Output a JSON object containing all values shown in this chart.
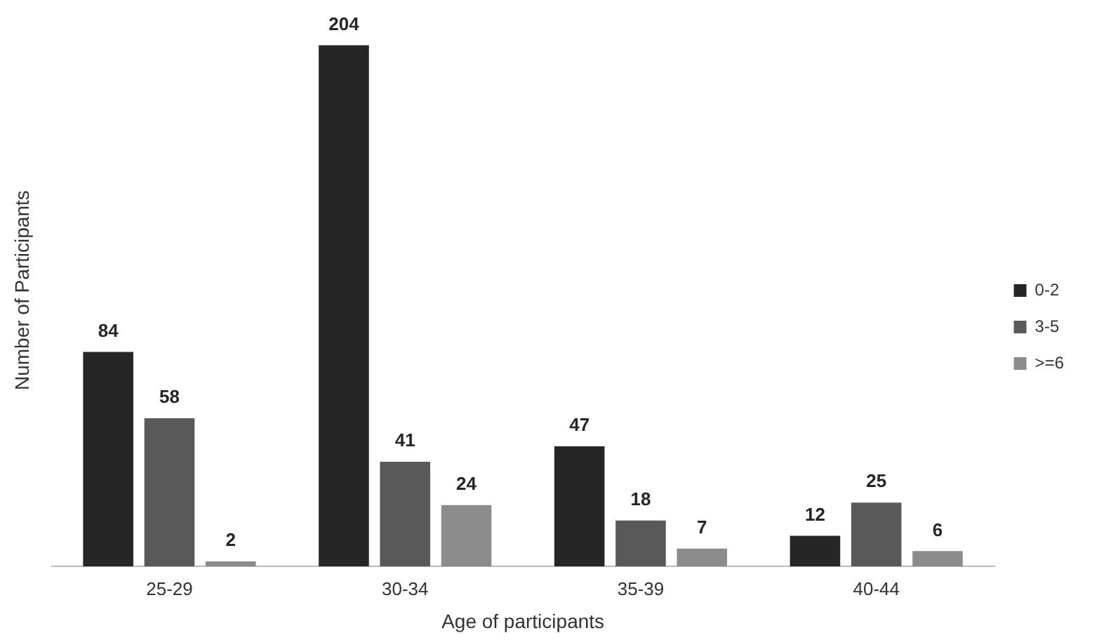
{
  "chart_data": {
    "type": "bar",
    "xlabel": "Age of participants",
    "ylabel": "Number of Participants",
    "categories": [
      "25-29",
      "30-34",
      "35-39",
      "40-44"
    ],
    "series": [
      {
        "name": "0-2",
        "color": "#262626",
        "values": [
          84,
          204,
          47,
          12
        ]
      },
      {
        "name": "3-5",
        "color": "#595959",
        "values": [
          58,
          41,
          18,
          25
        ]
      },
      {
        "name": ">=6",
        "color": "#8c8c8c",
        "values": [
          2,
          24,
          7,
          6
        ]
      }
    ],
    "data_labels": true,
    "legend": "right",
    "grid": false
  }
}
